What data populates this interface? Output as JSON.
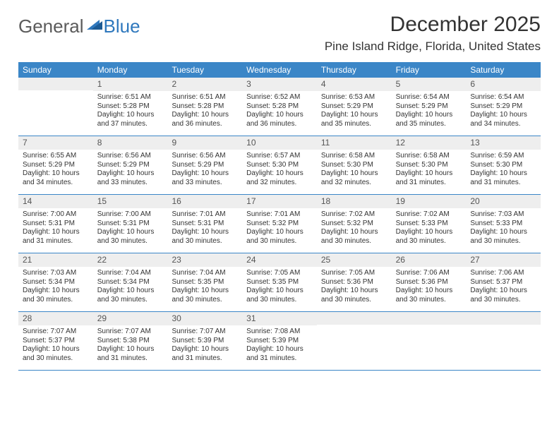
{
  "logo": {
    "text1": "General",
    "text2": "Blue"
  },
  "title": "December 2025",
  "location": "Pine Island Ridge, Florida, United States",
  "colors": {
    "header_bg": "#3b86c7",
    "header_text": "#ffffff",
    "daynum_bg": "#eeeeee",
    "daynum_text": "#555555",
    "body_text": "#333333",
    "rule": "#3b86c7",
    "logo_gray": "#5b5b5b",
    "logo_blue": "#2f78bd"
  },
  "weekdays": [
    "Sunday",
    "Monday",
    "Tuesday",
    "Wednesday",
    "Thursday",
    "Friday",
    "Saturday"
  ],
  "weeks": [
    [
      null,
      {
        "n": "1",
        "sr": "6:51 AM",
        "ss": "5:28 PM",
        "dl": "10 hours and 37 minutes."
      },
      {
        "n": "2",
        "sr": "6:51 AM",
        "ss": "5:28 PM",
        "dl": "10 hours and 36 minutes."
      },
      {
        "n": "3",
        "sr": "6:52 AM",
        "ss": "5:28 PM",
        "dl": "10 hours and 36 minutes."
      },
      {
        "n": "4",
        "sr": "6:53 AM",
        "ss": "5:29 PM",
        "dl": "10 hours and 35 minutes."
      },
      {
        "n": "5",
        "sr": "6:54 AM",
        "ss": "5:29 PM",
        "dl": "10 hours and 35 minutes."
      },
      {
        "n": "6",
        "sr": "6:54 AM",
        "ss": "5:29 PM",
        "dl": "10 hours and 34 minutes."
      }
    ],
    [
      {
        "n": "7",
        "sr": "6:55 AM",
        "ss": "5:29 PM",
        "dl": "10 hours and 34 minutes."
      },
      {
        "n": "8",
        "sr": "6:56 AM",
        "ss": "5:29 PM",
        "dl": "10 hours and 33 minutes."
      },
      {
        "n": "9",
        "sr": "6:56 AM",
        "ss": "5:29 PM",
        "dl": "10 hours and 33 minutes."
      },
      {
        "n": "10",
        "sr": "6:57 AM",
        "ss": "5:30 PM",
        "dl": "10 hours and 32 minutes."
      },
      {
        "n": "11",
        "sr": "6:58 AM",
        "ss": "5:30 PM",
        "dl": "10 hours and 32 minutes."
      },
      {
        "n": "12",
        "sr": "6:58 AM",
        "ss": "5:30 PM",
        "dl": "10 hours and 31 minutes."
      },
      {
        "n": "13",
        "sr": "6:59 AM",
        "ss": "5:30 PM",
        "dl": "10 hours and 31 minutes."
      }
    ],
    [
      {
        "n": "14",
        "sr": "7:00 AM",
        "ss": "5:31 PM",
        "dl": "10 hours and 31 minutes."
      },
      {
        "n": "15",
        "sr": "7:00 AM",
        "ss": "5:31 PM",
        "dl": "10 hours and 30 minutes."
      },
      {
        "n": "16",
        "sr": "7:01 AM",
        "ss": "5:31 PM",
        "dl": "10 hours and 30 minutes."
      },
      {
        "n": "17",
        "sr": "7:01 AM",
        "ss": "5:32 PM",
        "dl": "10 hours and 30 minutes."
      },
      {
        "n": "18",
        "sr": "7:02 AM",
        "ss": "5:32 PM",
        "dl": "10 hours and 30 minutes."
      },
      {
        "n": "19",
        "sr": "7:02 AM",
        "ss": "5:33 PM",
        "dl": "10 hours and 30 minutes."
      },
      {
        "n": "20",
        "sr": "7:03 AM",
        "ss": "5:33 PM",
        "dl": "10 hours and 30 minutes."
      }
    ],
    [
      {
        "n": "21",
        "sr": "7:03 AM",
        "ss": "5:34 PM",
        "dl": "10 hours and 30 minutes."
      },
      {
        "n": "22",
        "sr": "7:04 AM",
        "ss": "5:34 PM",
        "dl": "10 hours and 30 minutes."
      },
      {
        "n": "23",
        "sr": "7:04 AM",
        "ss": "5:35 PM",
        "dl": "10 hours and 30 minutes."
      },
      {
        "n": "24",
        "sr": "7:05 AM",
        "ss": "5:35 PM",
        "dl": "10 hours and 30 minutes."
      },
      {
        "n": "25",
        "sr": "7:05 AM",
        "ss": "5:36 PM",
        "dl": "10 hours and 30 minutes."
      },
      {
        "n": "26",
        "sr": "7:06 AM",
        "ss": "5:36 PM",
        "dl": "10 hours and 30 minutes."
      },
      {
        "n": "27",
        "sr": "7:06 AM",
        "ss": "5:37 PM",
        "dl": "10 hours and 30 minutes."
      }
    ],
    [
      {
        "n": "28",
        "sr": "7:07 AM",
        "ss": "5:37 PM",
        "dl": "10 hours and 30 minutes."
      },
      {
        "n": "29",
        "sr": "7:07 AM",
        "ss": "5:38 PM",
        "dl": "10 hours and 31 minutes."
      },
      {
        "n": "30",
        "sr": "7:07 AM",
        "ss": "5:39 PM",
        "dl": "10 hours and 31 minutes."
      },
      {
        "n": "31",
        "sr": "7:08 AM",
        "ss": "5:39 PM",
        "dl": "10 hours and 31 minutes."
      },
      null,
      null,
      null
    ]
  ],
  "labels": {
    "sunrise": "Sunrise:",
    "sunset": "Sunset:",
    "daylight": "Daylight:"
  }
}
